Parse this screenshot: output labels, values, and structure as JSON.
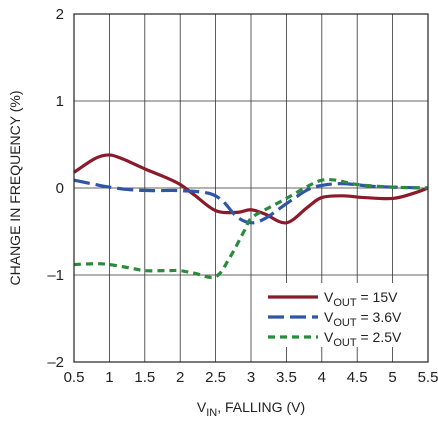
{
  "chart_data": {
    "type": "line",
    "xlabel": {
      "main": "V",
      "sub": "IN",
      "rest": ", FALLING (V)"
    },
    "ylabel": "CHANGE IN FREQUENCY (%)",
    "xlim": [
      0.5,
      5.5
    ],
    "ylim": [
      -2,
      2
    ],
    "x_ticks": [
      "0.5",
      "1",
      "1.5",
      "2",
      "2.5",
      "3",
      "3.5",
      "4",
      "4.5",
      "5",
      "5.5"
    ],
    "x_tick_values": [
      0.5,
      1,
      1.5,
      2,
      2.5,
      3,
      3.5,
      4,
      4.5,
      5,
      5.5
    ],
    "y_ticks": [
      "–2",
      "–1",
      "0",
      "1",
      "2"
    ],
    "y_tick_values": [
      -2,
      -1,
      0,
      1,
      2
    ],
    "grid": true,
    "legend_position": "bottom-right",
    "series": [
      {
        "name": {
          "main": "V",
          "sub": "OUT",
          "rest": " = 15V"
        },
        "color": "#8b1a2b",
        "dash": "solid",
        "x": [
          0.5,
          0.8,
          1.0,
          1.2,
          1.5,
          1.8,
          2.0,
          2.2,
          2.5,
          2.8,
          3.0,
          3.2,
          3.5,
          3.8,
          4.0,
          4.3,
          4.6,
          5.0,
          5.3,
          5.5
        ],
        "y": [
          0.18,
          0.34,
          0.38,
          0.33,
          0.22,
          0.12,
          0.04,
          -0.08,
          -0.26,
          -0.28,
          -0.25,
          -0.3,
          -0.4,
          -0.22,
          -0.11,
          -0.09,
          -0.11,
          -0.12,
          -0.06,
          0.0
        ]
      },
      {
        "name": {
          "main": "V",
          "sub": "OUT",
          "rest": " = 3.6V"
        },
        "color": "#2e55a8",
        "dash": "long",
        "x": [
          0.5,
          0.8,
          1.0,
          1.3,
          1.6,
          2.0,
          2.4,
          2.6,
          2.8,
          3.0,
          3.2,
          3.5,
          3.8,
          4.0,
          4.3,
          4.7,
          5.0,
          5.5
        ],
        "y": [
          0.09,
          0.04,
          0.01,
          -0.02,
          -0.03,
          -0.03,
          -0.06,
          -0.15,
          -0.33,
          -0.4,
          -0.35,
          -0.18,
          -0.02,
          0.03,
          0.05,
          0.02,
          0.01,
          0.0
        ]
      },
      {
        "name": {
          "main": "V",
          "sub": "OUT",
          "rest": " = 2.5V"
        },
        "color": "#2a8a3e",
        "dash": "short",
        "x": [
          0.5,
          0.8,
          1.0,
          1.3,
          1.5,
          1.8,
          2.0,
          2.2,
          2.5,
          2.7,
          2.9,
          3.0,
          3.2,
          3.5,
          3.8,
          4.0,
          4.2,
          4.5,
          5.0,
          5.5
        ],
        "y": [
          -0.88,
          -0.87,
          -0.88,
          -0.92,
          -0.95,
          -0.95,
          -0.95,
          -0.98,
          -1.02,
          -0.8,
          -0.5,
          -0.35,
          -0.25,
          -0.12,
          0.02,
          0.09,
          0.09,
          0.04,
          0.01,
          0.0
        ]
      }
    ]
  }
}
